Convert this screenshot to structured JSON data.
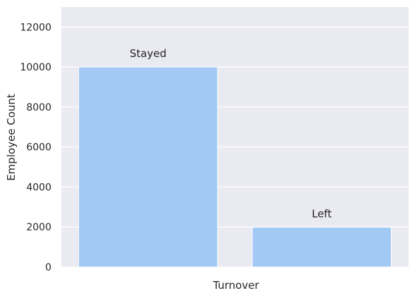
{
  "chart_data": {
    "type": "bar",
    "title": "",
    "xlabel": "Turnover",
    "ylabel": "Employee Count",
    "categories": [
      "Stayed",
      "Left"
    ],
    "values": [
      10000,
      1991
    ],
    "bar_labels": [
      "Stayed",
      "Left"
    ],
    "ylim": [
      0,
      13000
    ],
    "yticks": [
      0,
      2000,
      4000,
      6000,
      8000,
      10000,
      12000
    ],
    "grid": true,
    "legend": "none",
    "colors": {
      "background": "#eaeaf2",
      "grid": "#ffffff",
      "bar": "#a1c9f4"
    }
  }
}
